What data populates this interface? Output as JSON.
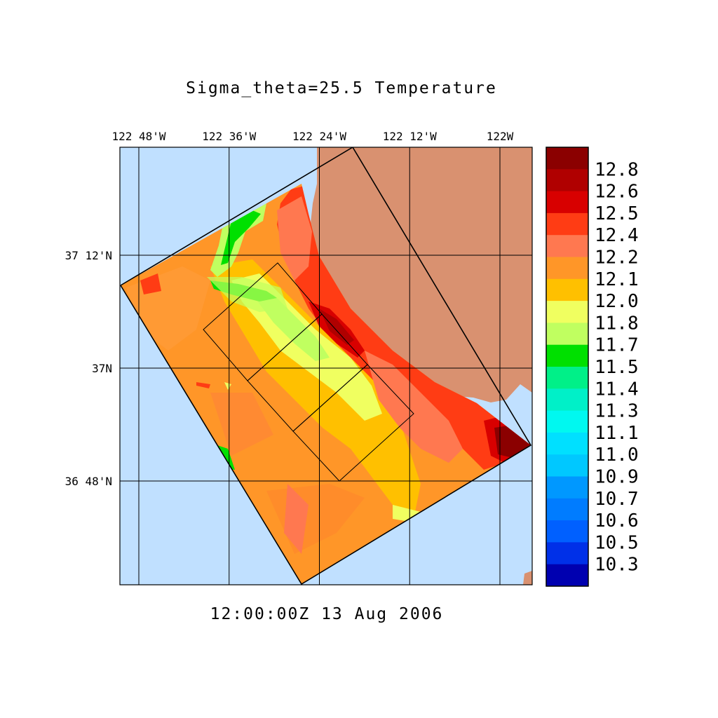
{
  "title": "Sigma_theta=25.5 Temperature",
  "timestamp": "12:00:00Z  13 Aug 2006",
  "lon_ticks": [
    {
      "label": "122 48'W",
      "value": -122.8
    },
    {
      "label": "122 36'W",
      "value": -122.6
    },
    {
      "label": "122 24'W",
      "value": -122.4
    },
    {
      "label": "122 12'W",
      "value": -122.2
    },
    {
      "label": "122W",
      "value": -122.0
    }
  ],
  "lat_ticks": [
    {
      "label": "37 12'N",
      "value": 37.2
    },
    {
      "label": "37N",
      "value": 37.0
    },
    {
      "label": "36 48'N",
      "value": 36.8
    }
  ],
  "colorbar": [
    {
      "label": "",
      "color": "#8b0000"
    },
    {
      "label": "12.8",
      "color": "#b00000"
    },
    {
      "label": "12.6",
      "color": "#d80000"
    },
    {
      "label": "12.5",
      "color": "#ff3c14"
    },
    {
      "label": "12.4",
      "color": "#ff7850"
    },
    {
      "label": "12.2",
      "color": "#ff9628"
    },
    {
      "label": "12.1",
      "color": "#ffc000"
    },
    {
      "label": "12.0",
      "color": "#f0ff60"
    },
    {
      "label": "11.8",
      "color": "#c0ff60"
    },
    {
      "label": "11.7",
      "color": "#00e000"
    },
    {
      "label": "11.5",
      "color": "#00f088"
    },
    {
      "label": "11.4",
      "color": "#00f0c8"
    },
    {
      "label": "11.3",
      "color": "#00f8f0"
    },
    {
      "label": "11.1",
      "color": "#00e0ff"
    },
    {
      "label": "11.0",
      "color": "#00c8ff"
    },
    {
      "label": "10.9",
      "color": "#0098ff"
    },
    {
      "label": "10.7",
      "color": "#007cff"
    },
    {
      "label": "10.6",
      "color": "#0060ff"
    },
    {
      "label": "10.5",
      "color": "#0030e8"
    },
    {
      "label": "10.3",
      "color": "#0000b0"
    }
  ],
  "colors": {
    "ocean": "#c0e0ff",
    "land": "#d99170",
    "background": "#ffffff"
  }
}
